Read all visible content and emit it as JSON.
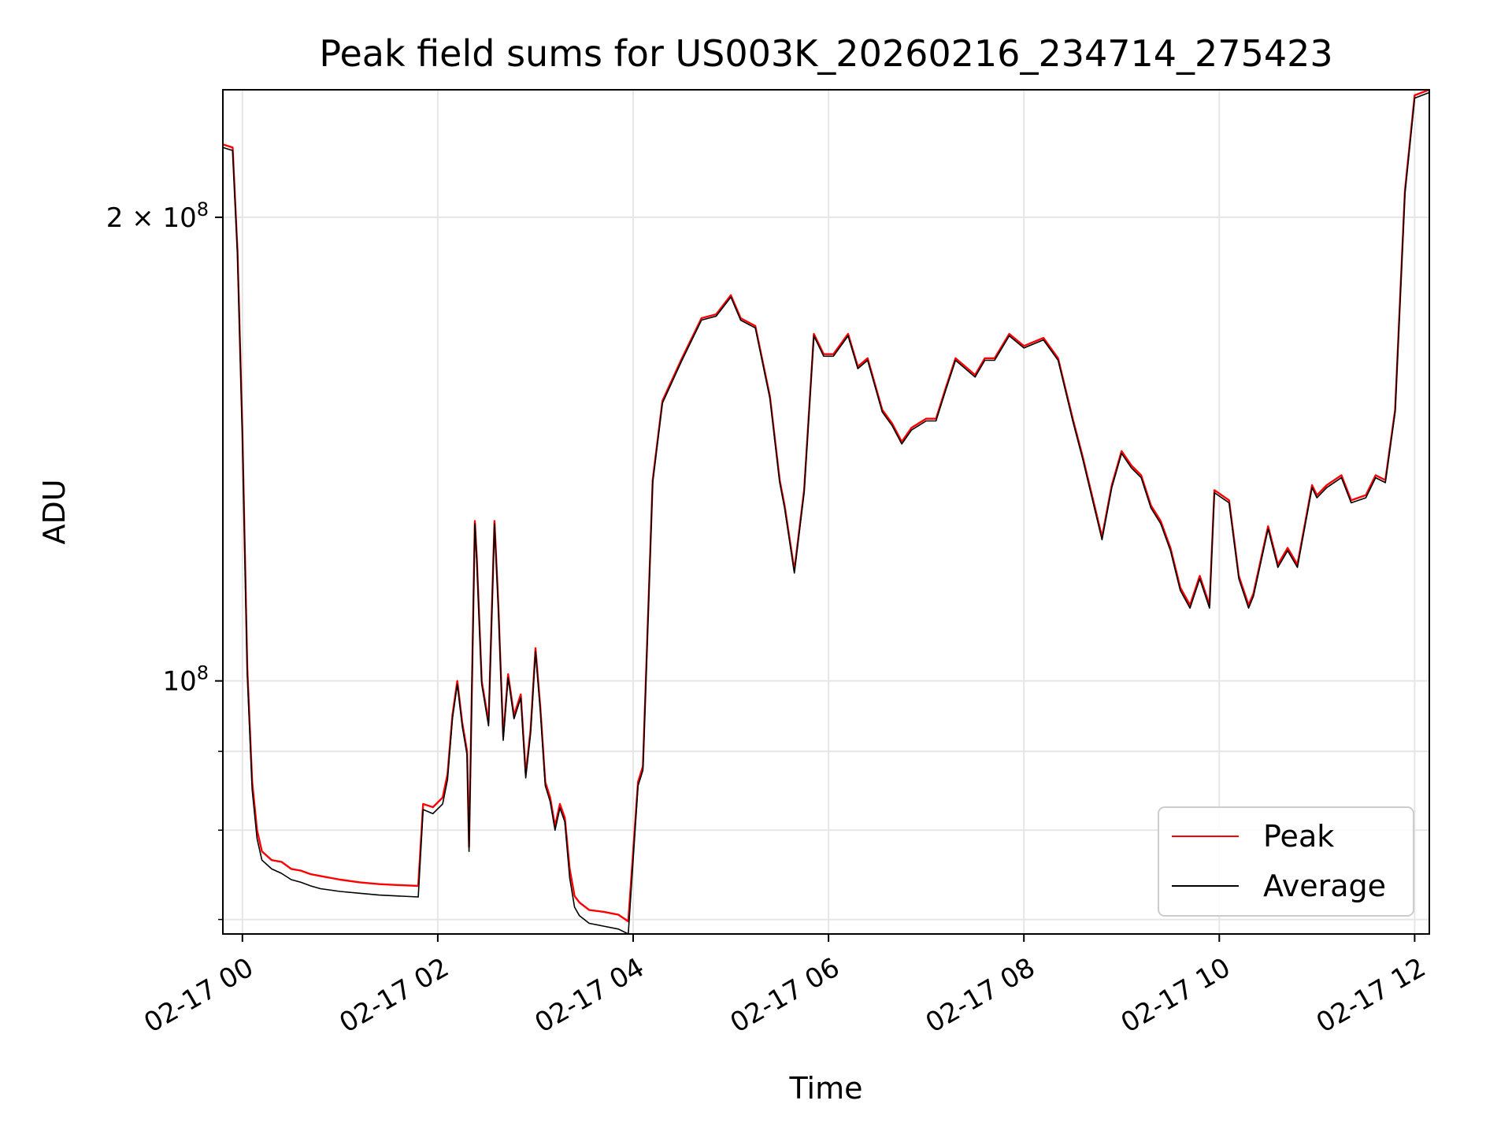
{
  "chart_data": {
    "type": "line",
    "title": "Peak field sums for US003K_20260216_234714_275423",
    "xlabel": "Time",
    "ylabel": "ADU",
    "x_unit": "hours (clock time on 02-17; negative = before 02-17 00:00)",
    "xlim": [
      -0.2,
      12.15
    ],
    "ylim": [
      68500000.0,
      242000000.0
    ],
    "yscale": "log",
    "grid": true,
    "legend_position": "lower right",
    "x_ticks": [
      {
        "value": 0,
        "label": "02-17 00"
      },
      {
        "value": 2,
        "label": "02-17 02"
      },
      {
        "value": 4,
        "label": "02-17 04"
      },
      {
        "value": 6,
        "label": "02-17 06"
      },
      {
        "value": 8,
        "label": "02-17 08"
      },
      {
        "value": 10,
        "label": "02-17 10"
      },
      {
        "value": 12,
        "label": "02-17 12"
      }
    ],
    "y_ticks": [
      {
        "value": 100000000,
        "base": "10",
        "exp": "8",
        "coef": ""
      },
      {
        "value": 200000000,
        "base": "10",
        "exp": "8",
        "coef": "2 × "
      }
    ],
    "y_minor_ticks": [
      70000000,
      80000000,
      90000000
    ],
    "x": [
      -0.2,
      -0.1,
      -0.05,
      0,
      0.05,
      0.1,
      0.15,
      0.2,
      0.3,
      0.4,
      0.5,
      0.6,
      0.7,
      0.8,
      1.0,
      1.2,
      1.4,
      1.6,
      1.8,
      1.85,
      1.95,
      2.05,
      2.1,
      2.15,
      2.2,
      2.25,
      2.3,
      2.32,
      2.38,
      2.4,
      2.45,
      2.52,
      2.58,
      2.62,
      2.67,
      2.72,
      2.78,
      2.85,
      2.9,
      2.95,
      3.0,
      3.05,
      3.1,
      3.15,
      3.2,
      3.25,
      3.3,
      3.35,
      3.4,
      3.45,
      3.55,
      3.7,
      3.85,
      3.95,
      4.05,
      4.1,
      4.2,
      4.3,
      4.5,
      4.7,
      4.85,
      5.0,
      5.1,
      5.25,
      5.4,
      5.5,
      5.55,
      5.65,
      5.75,
      5.85,
      5.95,
      6.05,
      6.2,
      6.3,
      6.4,
      6.55,
      6.65,
      6.75,
      6.85,
      7.0,
      7.1,
      7.2,
      7.3,
      7.5,
      7.6,
      7.7,
      7.85,
      8.0,
      8.2,
      8.35,
      8.5,
      8.6,
      8.8,
      8.9,
      9.0,
      9.1,
      9.2,
      9.3,
      9.4,
      9.5,
      9.6,
      9.7,
      9.8,
      9.9,
      9.95,
      10.1,
      10.2,
      10.3,
      10.35,
      10.5,
      10.6,
      10.7,
      10.8,
      10.95,
      11.0,
      11.1,
      11.25,
      11.35,
      11.5,
      11.6,
      11.7,
      11.8,
      11.9,
      12.0,
      12.15
    ],
    "series": [
      {
        "name": "Peak",
        "color": "#ff0000",
        "values": [
          223000000,
          222000000,
          190000000,
          145000000,
          102000000,
          86000000,
          80000000,
          77500000,
          76500000,
          76300000,
          75500000,
          75300000,
          74900000,
          74700000,
          74300000,
          74000000,
          73800000,
          73700000,
          73600000,
          83200000,
          82800000,
          84000000,
          87000000,
          95000000,
          100000000,
          94000000,
          90000000,
          78000000,
          127000000,
          120000000,
          100000000,
          94000000,
          127000000,
          112000000,
          92000000,
          101000000,
          95000000,
          98000000,
          87000000,
          93000000,
          105000000,
          96000000,
          86000000,
          84000000,
          80500000,
          83200000,
          81500000,
          75500000,
          72500000,
          71800000,
          71000000,
          70800000,
          70500000,
          69800000,
          86000000,
          88000000,
          135000000,
          152000000,
          162000000,
          172000000,
          173000000,
          178000000,
          172000000,
          170000000,
          153000000,
          135000000,
          130000000,
          118000000,
          133000000,
          168000000,
          163000000,
          163000000,
          168000000,
          160000000,
          162000000,
          150000000,
          147000000,
          143000000,
          146000000,
          148000000,
          148000000,
          155000000,
          162000000,
          158000000,
          162000000,
          162000000,
          168000000,
          165000000,
          167000000,
          162000000,
          148000000,
          140000000,
          124000000,
          134000000,
          141000000,
          138000000,
          136000000,
          130000000,
          127000000,
          122000000,
          115000000,
          112000000,
          117000000,
          112000000,
          133000000,
          131000000,
          117000000,
          112000000,
          114000000,
          126000000,
          119000000,
          122000000,
          119000000,
          134000000,
          132000000,
          134000000,
          136000000,
          131000000,
          132000000,
          136000000,
          135000000,
          150000000,
          208000000,
          240000000,
          242000000
        ]
      },
      {
        "name": "Average",
        "color": "#000000",
        "values": [
          222000000,
          221000000,
          189000000,
          144000000,
          101000000,
          85000000,
          79000000,
          76500000,
          75500000,
          75000000,
          74300000,
          74000000,
          73600000,
          73300000,
          73000000,
          72800000,
          72600000,
          72500000,
          72400000,
          82500000,
          82000000,
          83200000,
          86300000,
          94500000,
          99500000,
          93500000,
          89500000,
          77500000,
          126500000,
          119500000,
          99500000,
          93500000,
          126500000,
          111500000,
          91500000,
          100500000,
          94500000,
          97500000,
          86500000,
          92500000,
          104500000,
          95500000,
          85500000,
          83500000,
          80000000,
          82700000,
          81000000,
          74500000,
          71300000,
          70400000,
          69600000,
          69300000,
          69000000,
          68500000,
          85500000,
          87500000,
          134500000,
          151500000,
          161500000,
          171500000,
          172500000,
          177500000,
          171500000,
          169500000,
          152500000,
          134500000,
          129500000,
          117500000,
          132500000,
          167500000,
          162500000,
          162500000,
          167500000,
          159500000,
          161500000,
          149500000,
          146500000,
          142500000,
          145500000,
          147500000,
          147500000,
          154500000,
          161500000,
          157500000,
          161500000,
          161500000,
          167500000,
          164500000,
          166500000,
          161500000,
          147500000,
          139500000,
          123500000,
          133500000,
          140500000,
          137500000,
          135500000,
          129500000,
          126500000,
          121500000,
          114500000,
          111500000,
          116500000,
          111500000,
          132500000,
          130500000,
          116500000,
          111500000,
          113500000,
          125500000,
          118500000,
          121500000,
          118500000,
          133500000,
          131500000,
          133500000,
          135500000,
          130500000,
          131500000,
          135500000,
          134500000,
          149500000,
          207000000,
          239000000,
          241000000
        ]
      }
    ]
  }
}
